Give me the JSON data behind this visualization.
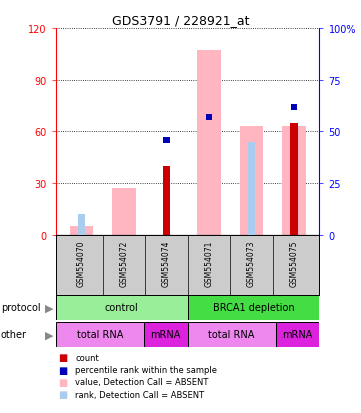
{
  "title": "GDS3791 / 228921_at",
  "samples": [
    "GSM554070",
    "GSM554072",
    "GSM554074",
    "GSM554071",
    "GSM554073",
    "GSM554075"
  ],
  "pink_bars": [
    5,
    27,
    0,
    107,
    63,
    63
  ],
  "red_bars": [
    0,
    0,
    40,
    0,
    0,
    65
  ],
  "blue_sq_right": [
    0,
    0,
    46,
    57,
    0,
    62
  ],
  "light_blue_right": [
    10,
    0,
    0,
    0,
    45,
    0
  ],
  "ylim_left": [
    0,
    120
  ],
  "ylim_right": [
    0,
    100
  ],
  "yticks_left": [
    0,
    30,
    60,
    90,
    120
  ],
  "yticks_right": [
    0,
    25,
    50,
    75,
    100
  ],
  "ytick_labels_left": [
    "0",
    "30",
    "60",
    "90",
    "120"
  ],
  "ytick_labels_right": [
    "0",
    "25",
    "50",
    "75",
    "100%"
  ],
  "color_pink": "#FFB6C1",
  "color_red": "#CC0000",
  "color_blue": "#0000BB",
  "color_light_blue": "#AACCEE",
  "color_green_light": "#99EE99",
  "color_green": "#44DD44",
  "color_purple_light": "#EE88EE",
  "color_purple_dark": "#DD22DD",
  "color_gray": "#CCCCCC",
  "legend_items": [
    {
      "label": "count",
      "color": "#CC0000"
    },
    {
      "label": "percentile rank within the sample",
      "color": "#0000BB"
    },
    {
      "label": "value, Detection Call = ABSENT",
      "color": "#FFB6C1"
    },
    {
      "label": "rank, Detection Call = ABSENT",
      "color": "#AACCEE"
    }
  ]
}
